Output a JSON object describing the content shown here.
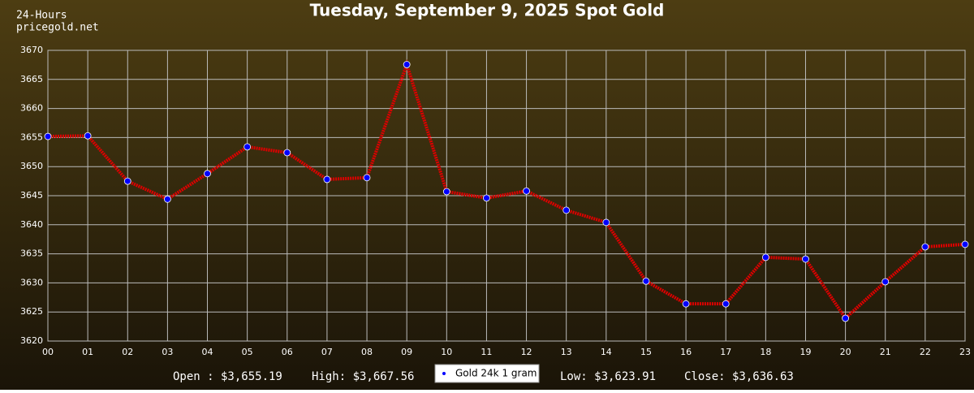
{
  "chart_data": {
    "type": "line",
    "title": "Tuesday, September 9, 2025 Spot Gold",
    "header_lines": [
      "24-Hours",
      "pricegold.net"
    ],
    "categories": [
      "00",
      "01",
      "02",
      "03",
      "04",
      "05",
      "06",
      "07",
      "08",
      "09",
      "10",
      "11",
      "12",
      "13",
      "14",
      "15",
      "16",
      "17",
      "18",
      "19",
      "20",
      "21",
      "22",
      "23"
    ],
    "series": [
      {
        "name": "Gold 24k 1 gram",
        "color": "#dd0000",
        "marker_color": "#0000ff",
        "values": [
          3655.19,
          3655.3,
          3647.5,
          3644.4,
          3648.8,
          3653.4,
          3652.4,
          3647.8,
          3648.1,
          3667.56,
          3645.7,
          3644.6,
          3645.8,
          3642.5,
          3640.4,
          3630.3,
          3626.4,
          3626.4,
          3634.4,
          3634.1,
          3623.91,
          3630.2,
          3636.2,
          3636.63
        ]
      }
    ],
    "ylim": [
      3620,
      3670
    ],
    "yticks": [
      3620,
      3625,
      3630,
      3635,
      3640,
      3645,
      3650,
      3655,
      3660,
      3665,
      3670
    ],
    "grid": true,
    "summary": [
      "Open : $3,655.19",
      "High: $3,667.56",
      "Low: $3,623.91",
      "Close: $3,636.63"
    ]
  }
}
